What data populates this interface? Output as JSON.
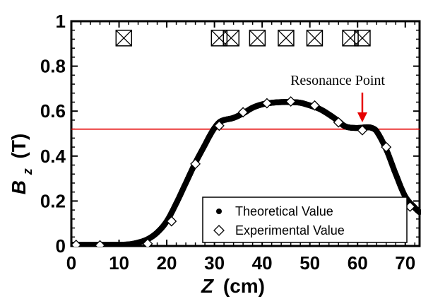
{
  "chart_data": {
    "type": "line",
    "xlabel_var": "Z",
    "xlabel_unit": "(cm)",
    "ylabel_var": "B",
    "ylabel_sub": "z",
    "ylabel_unit": "(T)",
    "xlim": [
      0,
      73
    ],
    "ylim": [
      0,
      1
    ],
    "xticks": [
      0,
      10,
      20,
      30,
      40,
      50,
      60,
      70
    ],
    "yticks": [
      0,
      0.2,
      0.4,
      0.6,
      0.8,
      1
    ],
    "ytick_labels": [
      "0",
      "0.2",
      "0.4",
      "0.6",
      "0.8",
      "1"
    ],
    "series": [
      {
        "name": "Theoretical Value",
        "marker": "filled-circle",
        "color": "#000000",
        "x": [
          0,
          4,
          8,
          12,
          14,
          16,
          18,
          20,
          22,
          24,
          26,
          28,
          29,
          30,
          31,
          32,
          34,
          36,
          38,
          40,
          42,
          44,
          46,
          48,
          50,
          52,
          54,
          56,
          57,
          58,
          60,
          62,
          63,
          64,
          66,
          68,
          70,
          72,
          73
        ],
        "y": [
          0.005,
          0.005,
          0.005,
          0.007,
          0.015,
          0.03,
          0.06,
          0.11,
          0.19,
          0.28,
          0.37,
          0.45,
          0.49,
          0.525,
          0.55,
          0.56,
          0.57,
          0.59,
          0.615,
          0.63,
          0.637,
          0.64,
          0.64,
          0.637,
          0.625,
          0.61,
          0.585,
          0.555,
          0.537,
          0.528,
          0.525,
          0.528,
          0.525,
          0.51,
          0.43,
          0.32,
          0.22,
          0.17,
          0.15
        ]
      },
      {
        "name": "Experimental Value",
        "marker": "open-diamond",
        "color": "#000000",
        "x": [
          1,
          6,
          16,
          21,
          26,
          31,
          36,
          41,
          46,
          51,
          56,
          61,
          66,
          71
        ],
        "y": [
          0.005,
          0.003,
          0.01,
          0.11,
          0.365,
          0.535,
          0.595,
          0.635,
          0.643,
          0.625,
          0.55,
          0.515,
          0.44,
          0.175
        ]
      }
    ],
    "reference_line": {
      "y": 0.52,
      "color": "#e60000"
    },
    "coil_markers": {
      "x": [
        11,
        31,
        33.5,
        39,
        45,
        51,
        58.5,
        61
      ],
      "y": 0.925,
      "symbol": "boxed-x"
    },
    "annotation": {
      "text": "Resonance Point",
      "x": 61,
      "y": 0.525,
      "arrow_color": "#e60000"
    },
    "legend": {
      "position": "bottom-right"
    }
  }
}
